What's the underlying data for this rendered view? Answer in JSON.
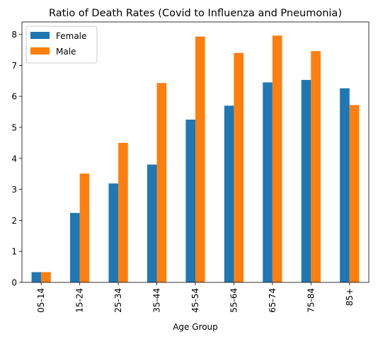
{
  "chart_data": {
    "type": "bar",
    "title": "Ratio of Death Rates (Covid to Influenza and Pneumonia)",
    "xlabel": "Age Group",
    "ylabel": "",
    "categories": [
      "05-14",
      "15-24",
      "25-34",
      "35-44",
      "45-54",
      "55-64",
      "65-74",
      "75-84",
      "85+"
    ],
    "series": [
      {
        "name": "Female",
        "color": "#1f77b4",
        "values": [
          0.33,
          2.24,
          3.19,
          3.8,
          5.25,
          5.7,
          6.45,
          6.53,
          6.26
        ]
      },
      {
        "name": "Male",
        "color": "#ff7f0e",
        "values": [
          0.33,
          3.51,
          4.5,
          6.43,
          7.93,
          7.4,
          7.96,
          7.46,
          5.72
        ]
      }
    ],
    "ylim": [
      0,
      8.4
    ],
    "yticks": [
      0,
      1,
      2,
      3,
      4,
      5,
      6,
      7,
      8
    ],
    "grid": false,
    "legend_position": "top-left"
  }
}
